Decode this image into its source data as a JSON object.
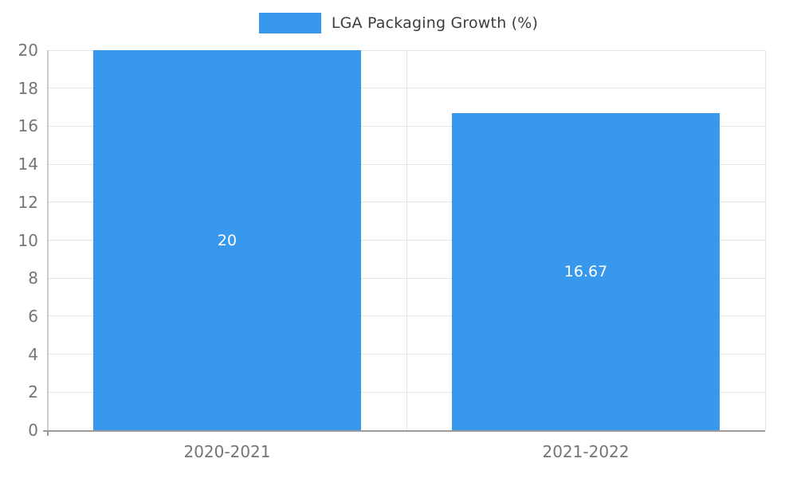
{
  "chart_data": {
    "type": "bar",
    "title": "",
    "legend": "LGA Packaging Growth (%)",
    "legend_position": "top",
    "categories": [
      "2020-2021",
      "2021-2022"
    ],
    "values": [
      20,
      16.67
    ],
    "value_labels": [
      "20",
      "16.67"
    ],
    "ylim": [
      0,
      20
    ],
    "yticks": [
      0,
      2,
      4,
      6,
      8,
      10,
      12,
      14,
      16,
      18,
      20
    ],
    "grid": true,
    "bar_color": "#3899EC",
    "value_label_color": "#ffffff",
    "tick_label_color": "#757575"
  }
}
